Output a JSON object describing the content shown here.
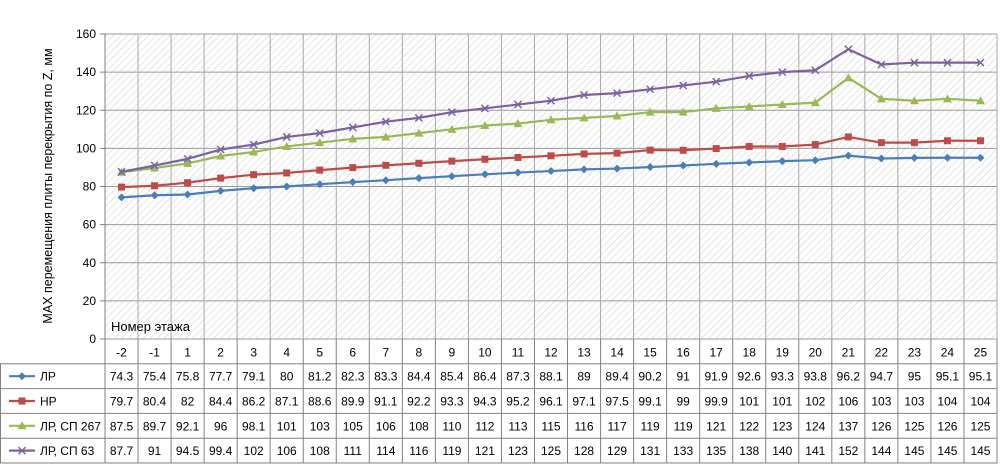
{
  "chart_data": {
    "type": "line",
    "title": "",
    "xlabel": "Номер этажа",
    "ylabel": "MAX перемещения плиты перекрытия по Z, мм",
    "ylim": [
      0,
      160
    ],
    "yticks": [
      "0",
      "20",
      "40",
      "60",
      "80",
      "100",
      "120",
      "140",
      "160"
    ],
    "grid": true,
    "legend": "data-table-left",
    "categories": [
      "-2",
      "-1",
      "1",
      "2",
      "3",
      "4",
      "5",
      "6",
      "7",
      "8",
      "9",
      "10",
      "11",
      "12",
      "13",
      "14",
      "15",
      "16",
      "17",
      "18",
      "19",
      "20",
      "21",
      "22",
      "23",
      "24",
      "25"
    ],
    "series": [
      {
        "name": "ЛР",
        "color": "#4a7ebb",
        "marker": "diamond",
        "values": [
          74.3,
          75.4,
          75.8,
          77.7,
          79.1,
          80,
          81.2,
          82.3,
          83.3,
          84.4,
          85.4,
          86.4,
          87.3,
          88.1,
          89,
          89.4,
          90.2,
          91,
          91.9,
          92.6,
          93.3,
          93.8,
          96.2,
          94.7,
          95,
          95.1,
          95.1
        ],
        "labels": [
          "74.3",
          "75.4",
          "75.8",
          "77.7",
          "79.1",
          "80",
          "81.2",
          "82.3",
          "83.3",
          "84.4",
          "85.4",
          "86.4",
          "87.3",
          "88.1",
          "89",
          "89.4",
          "90.2",
          "91",
          "91.9",
          "92.6",
          "93.3",
          "93.8",
          "96.2",
          "94.7",
          "95",
          "95.1",
          "95.1"
        ]
      },
      {
        "name": "НР",
        "color": "#be4b48",
        "marker": "square",
        "values": [
          79.7,
          80.4,
          82,
          84.4,
          86.2,
          87.1,
          88.6,
          89.9,
          91.1,
          92.2,
          93.3,
          94.3,
          95.2,
          96.1,
          97.1,
          97.5,
          99.1,
          99,
          99.9,
          101,
          101,
          102,
          106,
          103,
          103,
          104,
          104
        ],
        "labels": [
          "79.7",
          "80.4",
          "82",
          "84.4",
          "86.2",
          "87.1",
          "88.6",
          "89.9",
          "91.1",
          "92.2",
          "93.3",
          "94.3",
          "95.2",
          "96.1",
          "97.1",
          "97.5",
          "99.1",
          "99",
          "99.9",
          "101",
          "101",
          "102",
          "106",
          "103",
          "103",
          "104",
          "104"
        ]
      },
      {
        "name": "ЛР, СП 267",
        "color": "#98b954",
        "marker": "triangle",
        "values": [
          87.5,
          89.7,
          92.1,
          96,
          98.1,
          101,
          103,
          105,
          106,
          108,
          110,
          112,
          113,
          115,
          116,
          117,
          119,
          119,
          121,
          122,
          123,
          124,
          137,
          126,
          125,
          126,
          125
        ],
        "labels": [
          "87.5",
          "89.7",
          "92.1",
          "96",
          "98.1",
          "101",
          "103",
          "105",
          "106",
          "108",
          "110",
          "112",
          "113",
          "115",
          "116",
          "117",
          "119",
          "119",
          "121",
          "122",
          "123",
          "124",
          "137",
          "126",
          "125",
          "126",
          "125"
        ]
      },
      {
        "name": "ЛР, СП 63",
        "color": "#7d60a0",
        "marker": "x",
        "values": [
          87.7,
          91,
          94.5,
          99.4,
          102,
          106,
          108,
          111,
          114,
          116,
          119,
          121,
          123,
          125,
          128,
          129,
          131,
          133,
          135,
          138,
          140,
          141,
          152,
          144,
          145,
          145,
          145
        ],
        "labels": [
          "87.7",
          "91",
          "94.5",
          "99.4",
          "102",
          "106",
          "108",
          "111",
          "114",
          "116",
          "119",
          "121",
          "123",
          "125",
          "128",
          "129",
          "131",
          "133",
          "135",
          "138",
          "140",
          "141",
          "152",
          "144",
          "145",
          "145",
          "145"
        ]
      }
    ]
  }
}
